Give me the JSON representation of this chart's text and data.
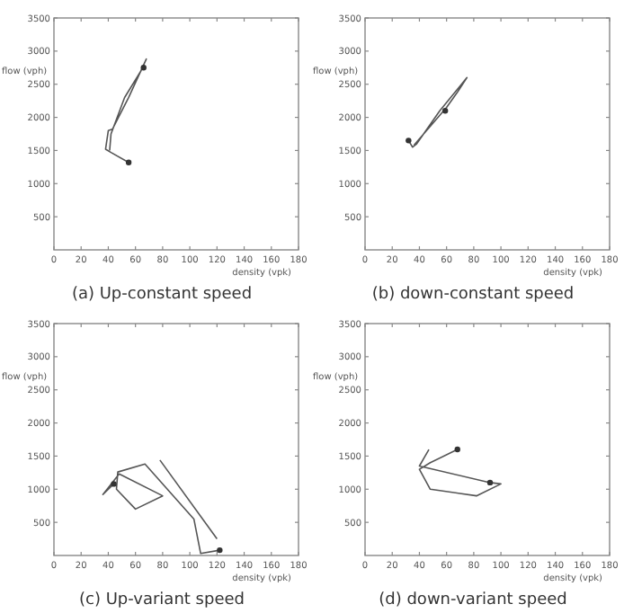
{
  "chart_data": [
    {
      "type": "line",
      "title": "(a) Up-constant speed",
      "xlabel": "density (vpk)",
      "ylabel": "flow (vph)",
      "xlim": [
        0,
        180
      ],
      "ylim": [
        0,
        3500
      ],
      "xticks": [
        0,
        20,
        40,
        60,
        80,
        100,
        120,
        140,
        160,
        180
      ],
      "yticks": [
        500,
        1000,
        1500,
        2000,
        2500,
        3000,
        3500
      ],
      "grid": false,
      "series": [
        {
          "color": "#555555",
          "x": [
            55,
            42,
            38,
            40,
            43,
            55,
            68,
            64,
            52,
            42,
            41
          ],
          "values": [
            1320,
            1470,
            1520,
            1800,
            1820,
            2300,
            2880,
            2700,
            2300,
            1750,
            1500
          ]
        },
        {
          "type": "scatter",
          "marker": "circle",
          "color": "#333333",
          "x": [
            55,
            66
          ],
          "values": [
            1320,
            2750
          ]
        }
      ]
    },
    {
      "type": "line",
      "title": "(b) down-constant speed",
      "xlabel": "density (vpk)",
      "ylabel": "flow (vph)",
      "xlim": [
        0,
        180
      ],
      "ylim": [
        0,
        3500
      ],
      "xticks": [
        0,
        20,
        40,
        60,
        80,
        100,
        120,
        140,
        160,
        180
      ],
      "yticks": [
        500,
        1000,
        1500,
        2000,
        2500,
        3000,
        3500
      ],
      "grid": false,
      "series": [
        {
          "color": "#555555",
          "x": [
            32,
            35,
            38,
            55,
            75,
            68,
            60,
            36
          ],
          "values": [
            1650,
            1550,
            1600,
            2100,
            2600,
            2380,
            2150,
            1580
          ]
        },
        {
          "type": "scatter",
          "marker": "circle",
          "color": "#333333",
          "x": [
            32,
            59
          ],
          "values": [
            1650,
            2100
          ]
        }
      ]
    },
    {
      "type": "line",
      "title": "(c) Up-variant speed",
      "xlabel": "density (vpk)",
      "ylabel": "flow (vph)",
      "xlim": [
        0,
        180
      ],
      "ylim": [
        0,
        3500
      ],
      "xticks": [
        0,
        20,
        40,
        60,
        80,
        100,
        120,
        140,
        160,
        180
      ],
      "yticks": [
        500,
        1000,
        1500,
        2000,
        2500,
        3000,
        3500
      ],
      "grid": false,
      "series": [
        {
          "color": "#555555",
          "x": [
            122,
            108,
            103,
            67,
            47,
            46,
            60,
            80,
            48,
            36,
            44
          ],
          "values": [
            80,
            30,
            550,
            1380,
            1260,
            1000,
            700,
            900,
            1230,
            920,
            1080
          ]
        },
        {
          "color": "#555555",
          "x": [
            78,
            120
          ],
          "values": [
            1440,
            250
          ]
        },
        {
          "type": "scatter",
          "marker": "circle",
          "color": "#333333",
          "x": [
            122,
            44
          ],
          "values": [
            80,
            1080
          ]
        }
      ]
    },
    {
      "type": "line",
      "title": "(d) down-variant speed",
      "xlabel": "density (vpk)",
      "ylabel": "flow (vph)",
      "xlim": [
        0,
        180
      ],
      "ylim": [
        0,
        3500
      ],
      "xticks": [
        0,
        20,
        40,
        60,
        80,
        100,
        120,
        140,
        160,
        180
      ],
      "yticks": [
        500,
        1000,
        1500,
        2000,
        2500,
        3000,
        3500
      ],
      "grid": false,
      "series": [
        {
          "color": "#555555",
          "x": [
            68,
            48,
            40,
            48,
            82,
            100,
            92,
            40,
            47
          ],
          "values": [
            1600,
            1400,
            1300,
            1000,
            900,
            1080,
            1100,
            1350,
            1600
          ]
        },
        {
          "type": "scatter",
          "marker": "circle",
          "color": "#333333",
          "x": [
            68,
            92
          ],
          "values": [
            1600,
            1100
          ]
        }
      ]
    }
  ]
}
